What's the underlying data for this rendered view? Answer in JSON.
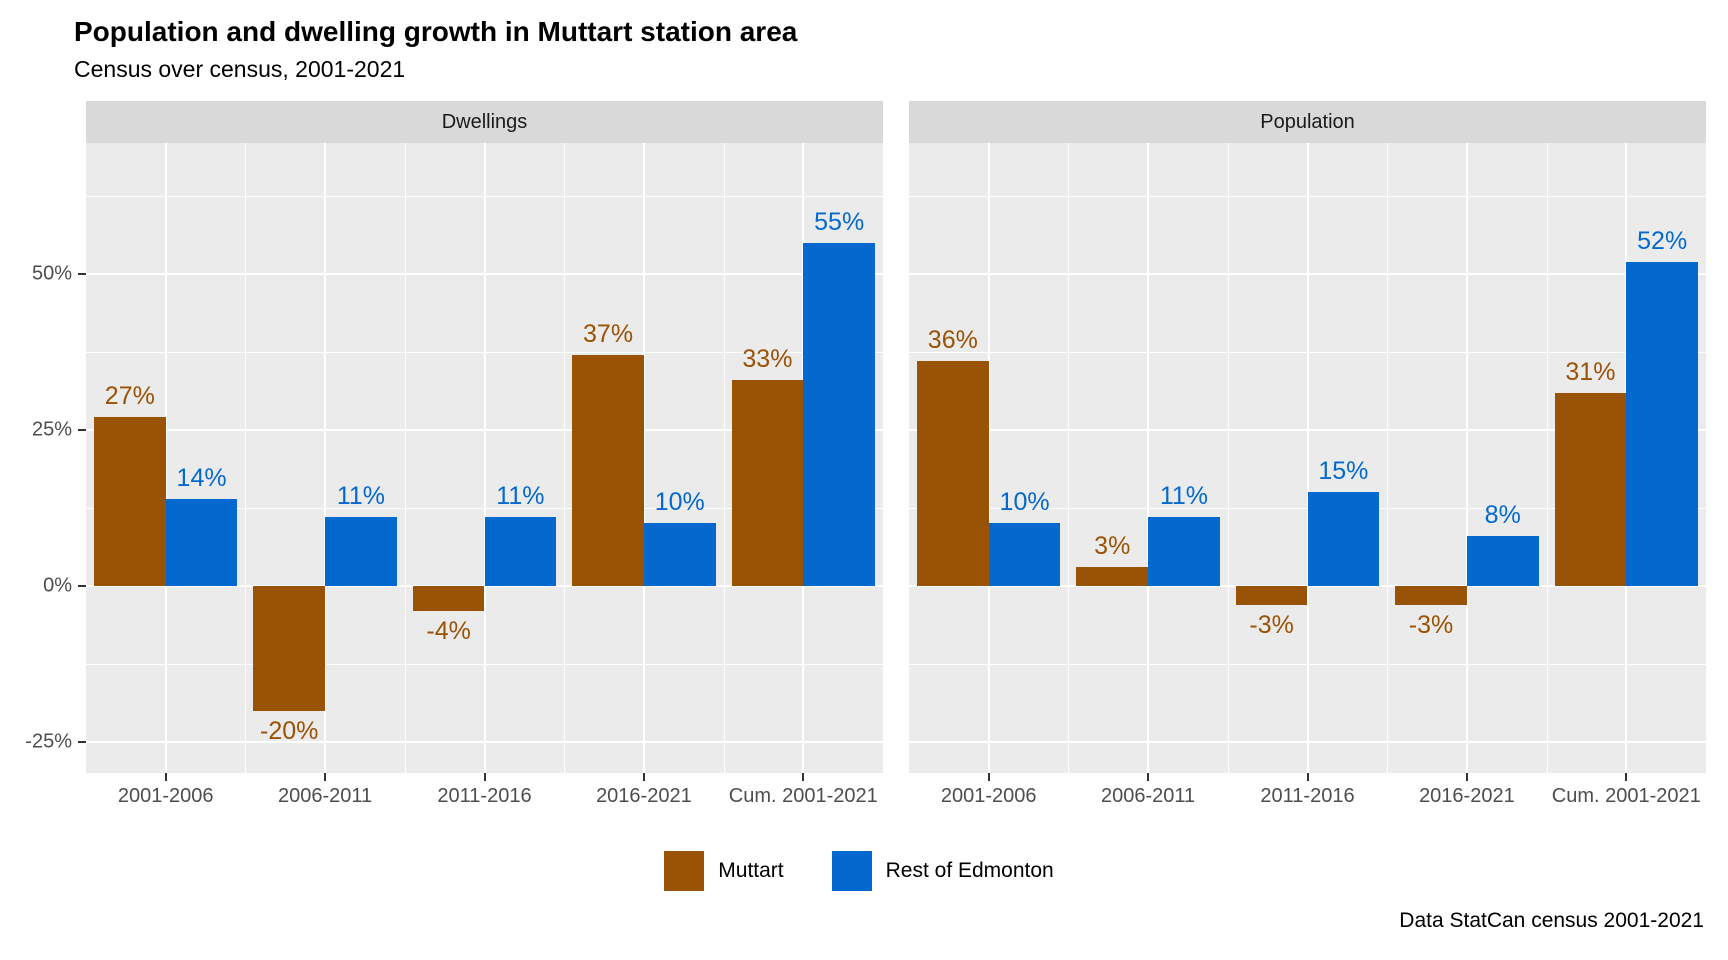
{
  "title": "Population and dwelling growth in Muttart station area",
  "subtitle": "Census over census, 2001-2021",
  "caption": "Data StatCan census 2001-2021",
  "legend": {
    "position": "bottom",
    "items": [
      {
        "label": "Muttart",
        "color": "#9a5205"
      },
      {
        "label": "Rest of Edmonton",
        "color": "#0469ce"
      }
    ]
  },
  "colors": {
    "panel_background": "#ebebeb",
    "strip_background": "#d9d9d9",
    "gridline": "#ffffff",
    "axis_text": "#4d4d4d",
    "tick_mark": "#333333",
    "muttart_brown": "#9a5205",
    "edmonton_blue": "#0469ce"
  },
  "chart_data": {
    "type": "bar",
    "title": "Population and dwelling growth in Muttart station area",
    "subtitle": "Census over census, 2001-2021",
    "caption": "Data StatCan census 2001-2021",
    "categories": [
      "2001-2006",
      "2006-2011",
      "2011-2016",
      "2016-2021",
      "Cum. 2001-2021"
    ],
    "facets": [
      {
        "label": "Dwellings",
        "series": [
          {
            "name": "Muttart",
            "color": "#9a5205",
            "values": [
              27,
              -20,
              -4,
              37,
              33
            ],
            "labels": [
              "27%",
              "-20%",
              "-4%",
              "37%",
              "33%"
            ]
          },
          {
            "name": "Rest of Edmonton",
            "color": "#0469ce",
            "values": [
              14,
              11,
              11,
              10,
              55
            ],
            "labels": [
              "14%",
              "11%",
              "11%",
              "10%",
              "55%"
            ]
          }
        ]
      },
      {
        "label": "Population",
        "series": [
          {
            "name": "Muttart",
            "color": "#9a5205",
            "values": [
              36,
              3,
              -3,
              -3,
              31
            ],
            "labels": [
              "36%",
              "3%",
              "-3%",
              "-3%",
              "31%"
            ]
          },
          {
            "name": "Rest of Edmonton",
            "color": "#0469ce",
            "values": [
              10,
              11,
              15,
              8,
              52
            ],
            "labels": [
              "10%",
              "11%",
              "15%",
              "8%",
              "52%"
            ]
          }
        ]
      }
    ],
    "ylabel": "",
    "xlabel": "",
    "value_suffix": "%",
    "y_ticks": [
      50,
      25,
      0,
      -25
    ],
    "y_tick_labels": [
      "50%",
      "25%",
      "0%",
      "-25%"
    ],
    "y_minor_ticks": [
      62.5,
      37.5,
      12.5,
      -12.5
    ],
    "ylim": [
      -30,
      71
    ],
    "grid": true,
    "legend_position": "bottom"
  }
}
